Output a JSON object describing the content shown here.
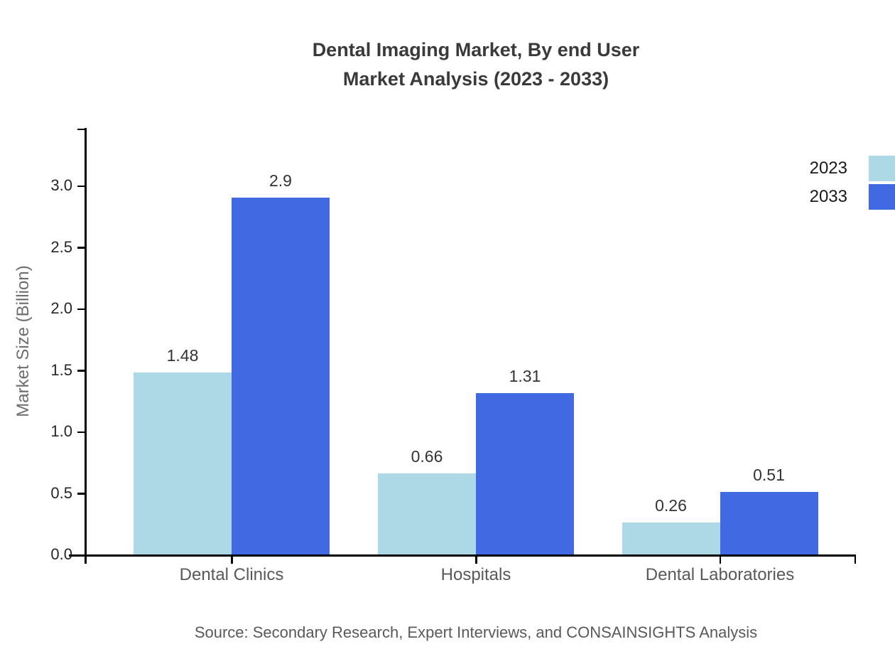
{
  "title": {
    "line1": "Dental Imaging Market, By end User",
    "line2": "Market Analysis (2023 - 2033)"
  },
  "chart_data": {
    "type": "bar",
    "title": "Dental Imaging Market, By end User Market Analysis (2023 - 2033)",
    "categories": [
      "Dental Clinics",
      "Hospitals",
      "Dental Laboratories"
    ],
    "series": [
      {
        "name": "2023",
        "color": "#ADD8E6",
        "values": [
          1.48,
          0.66,
          0.26
        ],
        "labels": [
          "1.48",
          "0.66",
          "0.26"
        ]
      },
      {
        "name": "2033",
        "color": "#4169E1",
        "values": [
          2.9,
          1.31,
          0.51
        ],
        "labels": [
          "2.9",
          "1.31",
          "0.51"
        ]
      }
    ],
    "xlabel": "",
    "ylabel": "Market Size (Billion)",
    "ylim": [
      0,
      3.45
    ],
    "yticks": [
      {
        "v": 0.0,
        "label": "0.0"
      },
      {
        "v": 0.5,
        "label": "0.5"
      },
      {
        "v": 1.0,
        "label": "1.0"
      },
      {
        "v": 1.5,
        "label": "1.5"
      },
      {
        "v": 2.0,
        "label": "2.0"
      },
      {
        "v": 2.5,
        "label": "2.5"
      },
      {
        "v": 3.0,
        "label": "3.0"
      }
    ],
    "grid": false,
    "legend_position": "top-right"
  },
  "source": "Source: Secondary Research, Expert Interviews, and CONSAINSIGHTS Analysis"
}
